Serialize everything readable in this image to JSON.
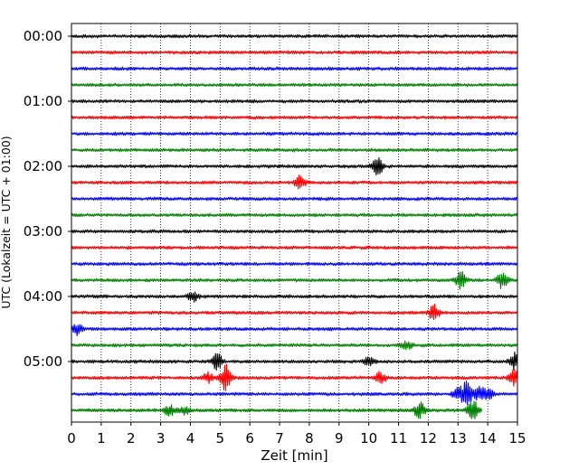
{
  "chart_data": {
    "type": "line",
    "title": "",
    "xlabel": "Zeit  [min]",
    "ylabel": "UTC (Lokalzeit = UTC + 01:00)",
    "xlim": [
      0,
      15
    ],
    "x_ticks": [
      "0",
      "1",
      "2",
      "3",
      "4",
      "5",
      "6",
      "7",
      "8",
      "9",
      "10",
      "11",
      "12",
      "13",
      "14",
      "15"
    ],
    "y_ticks": [
      "00:00",
      "01:00",
      "02:00",
      "03:00",
      "04:00",
      "05:00"
    ],
    "grid": "vertical dotted at each minute",
    "colors": [
      "#000000",
      "#ff0000",
      "#0000ff",
      "#008000"
    ],
    "trace_interval_min": 15,
    "series": [
      {
        "start": "00:00",
        "color": "#000000",
        "end_min": 15,
        "events": []
      },
      {
        "start": "00:15",
        "color": "#ff0000",
        "end_min": 15,
        "events": []
      },
      {
        "start": "00:30",
        "color": "#0000ff",
        "end_min": 15,
        "events": []
      },
      {
        "start": "00:45",
        "color": "#008000",
        "end_min": 15,
        "events": []
      },
      {
        "start": "01:00",
        "color": "#000000",
        "end_min": 15,
        "events": []
      },
      {
        "start": "01:15",
        "color": "#ff0000",
        "end_min": 15,
        "events": []
      },
      {
        "start": "01:30",
        "color": "#0000ff",
        "end_min": 15,
        "events": []
      },
      {
        "start": "01:45",
        "color": "#008000",
        "end_min": 15,
        "events": []
      },
      {
        "start": "02:00",
        "color": "#000000",
        "end_min": 15,
        "events": [
          {
            "t": 10.3,
            "amp": 1.0
          }
        ]
      },
      {
        "start": "02:15",
        "color": "#ff0000",
        "end_min": 15,
        "events": [
          {
            "t": 7.7,
            "amp": 0.7
          }
        ]
      },
      {
        "start": "02:30",
        "color": "#0000ff",
        "end_min": 15,
        "events": []
      },
      {
        "start": "02:45",
        "color": "#008000",
        "end_min": 15,
        "events": []
      },
      {
        "start": "03:00",
        "color": "#000000",
        "end_min": 15,
        "events": []
      },
      {
        "start": "03:15",
        "color": "#ff0000",
        "end_min": 15,
        "events": []
      },
      {
        "start": "03:30",
        "color": "#0000ff",
        "end_min": 15,
        "events": []
      },
      {
        "start": "03:45",
        "color": "#008000",
        "end_min": 15,
        "events": [
          {
            "t": 13.1,
            "amp": 0.8
          },
          {
            "t": 14.5,
            "amp": 0.9
          }
        ]
      },
      {
        "start": "04:00",
        "color": "#000000",
        "end_min": 15,
        "events": [
          {
            "t": 4.1,
            "amp": 0.5
          }
        ]
      },
      {
        "start": "04:15",
        "color": "#ff0000",
        "end_min": 15,
        "events": [
          {
            "t": 12.2,
            "amp": 0.8
          }
        ]
      },
      {
        "start": "04:30",
        "color": "#0000ff",
        "end_min": 15,
        "events": [
          {
            "t": 0.2,
            "amp": 0.6
          }
        ]
      },
      {
        "start": "04:45",
        "color": "#008000",
        "end_min": 15,
        "events": [
          {
            "t": 11.3,
            "amp": 0.4
          }
        ]
      },
      {
        "start": "05:00",
        "color": "#000000",
        "end_min": 15,
        "events": [
          {
            "t": 4.9,
            "amp": 0.8
          },
          {
            "t": 10.0,
            "amp": 0.4
          },
          {
            "t": 14.9,
            "amp": 0.9
          }
        ]
      },
      {
        "start": "05:15",
        "color": "#ff0000",
        "end_min": 15,
        "events": [
          {
            "t": 4.6,
            "amp": 0.5
          },
          {
            "t": 5.2,
            "amp": 1.5
          },
          {
            "t": 10.4,
            "amp": 0.6
          },
          {
            "t": 14.9,
            "amp": 0.8
          }
        ]
      },
      {
        "start": "05:30",
        "color": "#0000ff",
        "end_min": 15,
        "events": [
          {
            "t": 13.0,
            "amp": 0.6
          },
          {
            "t": 13.3,
            "amp": 1.2
          },
          {
            "t": 13.7,
            "amp": 0.6
          },
          {
            "t": 14.0,
            "amp": 0.5
          }
        ]
      },
      {
        "start": "05:45",
        "color": "#008000",
        "end_min": 13.8,
        "events": [
          {
            "t": 3.3,
            "amp": 0.5
          },
          {
            "t": 3.8,
            "amp": 0.4
          },
          {
            "t": 11.7,
            "amp": 0.8
          },
          {
            "t": 13.5,
            "amp": 1.1
          }
        ]
      }
    ]
  }
}
